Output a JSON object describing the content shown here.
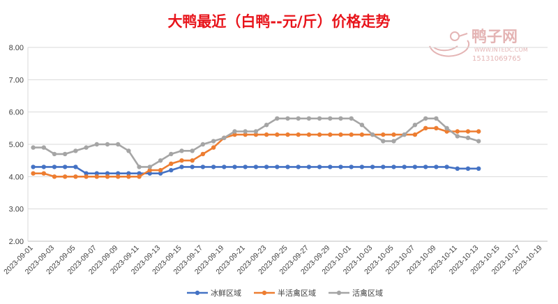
{
  "chart_data": {
    "type": "line",
    "title": "大鸭最近（白鸭--元/斤）价格走势",
    "xlabel": "",
    "ylabel": "",
    "ylim": [
      2.0,
      8.0
    ],
    "yticks": [
      "2.00",
      "3.00",
      "4.00",
      "5.00",
      "6.00",
      "7.00",
      "8.00"
    ],
    "x_start": "2023-09-01",
    "x_end": "2023-10-20",
    "x_tick_labels": [
      "2023-09-01",
      "2023-09-03",
      "2023-09-05",
      "2023-09-07",
      "2023-09-09",
      "2023-09-11",
      "2023-09-13",
      "2023-09-15",
      "2023-09-17",
      "2023-09-19",
      "2023-09-21",
      "2023-09-23",
      "2023-09-25",
      "2023-09-27",
      "2023-09-29",
      "2023-10-01",
      "2023-10-03",
      "2023-10-05",
      "2023-10-07",
      "2023-10-09",
      "2023-10-11",
      "2023-10-13",
      "2023-10-15",
      "2023-10-17",
      "2023-10-19"
    ],
    "grid": "horizontal",
    "legend": "bottom",
    "series": [
      {
        "name": "冰鲜区域",
        "color": "#4472c4",
        "points": [
          [
            "2023-09-01",
            4.3
          ],
          [
            "2023-09-02",
            4.3
          ],
          [
            "2023-09-03",
            4.3
          ],
          [
            "2023-09-04",
            4.3
          ],
          [
            "2023-09-05",
            4.3
          ],
          [
            "2023-09-06",
            4.1
          ],
          [
            "2023-09-07",
            4.1
          ],
          [
            "2023-09-08",
            4.1
          ],
          [
            "2023-09-09",
            4.1
          ],
          [
            "2023-09-10",
            4.1
          ],
          [
            "2023-09-11",
            4.1
          ],
          [
            "2023-09-12",
            4.1
          ],
          [
            "2023-09-13",
            4.1
          ],
          [
            "2023-09-14",
            4.2
          ],
          [
            "2023-09-15",
            4.3
          ],
          [
            "2023-09-16",
            4.3
          ],
          [
            "2023-09-17",
            4.3
          ],
          [
            "2023-09-18",
            4.3
          ],
          [
            "2023-09-19",
            4.3
          ],
          [
            "2023-09-20",
            4.3
          ],
          [
            "2023-09-21",
            4.3
          ],
          [
            "2023-09-22",
            4.3
          ],
          [
            "2023-09-23",
            4.3
          ],
          [
            "2023-09-24",
            4.3
          ],
          [
            "2023-09-25",
            4.3
          ],
          [
            "2023-09-26",
            4.3
          ],
          [
            "2023-09-27",
            4.3
          ],
          [
            "2023-09-28",
            4.3
          ],
          [
            "2023-09-29",
            4.3
          ],
          [
            "2023-09-30",
            4.3
          ],
          [
            "2023-10-01",
            4.3
          ],
          [
            "2023-10-02",
            4.3
          ],
          [
            "2023-10-03",
            4.3
          ],
          [
            "2023-10-04",
            4.3
          ],
          [
            "2023-10-05",
            4.3
          ],
          [
            "2023-10-06",
            4.3
          ],
          [
            "2023-10-07",
            4.3
          ],
          [
            "2023-10-08",
            4.3
          ],
          [
            "2023-10-09",
            4.3
          ],
          [
            "2023-10-10",
            4.3
          ],
          [
            "2023-10-11",
            4.25
          ],
          [
            "2023-10-12",
            4.25
          ],
          [
            "2023-10-13",
            4.25
          ]
        ]
      },
      {
        "name": "半活禽区域",
        "color": "#ed7d31",
        "points": [
          [
            "2023-09-01",
            4.1
          ],
          [
            "2023-09-02",
            4.1
          ],
          [
            "2023-09-03",
            4.0
          ],
          [
            "2023-09-04",
            4.0
          ],
          [
            "2023-09-05",
            4.0
          ],
          [
            "2023-09-06",
            4.0
          ],
          [
            "2023-09-07",
            4.0
          ],
          [
            "2023-09-08",
            4.0
          ],
          [
            "2023-09-09",
            4.0
          ],
          [
            "2023-09-10",
            4.0
          ],
          [
            "2023-09-11",
            4.0
          ],
          [
            "2023-09-12",
            4.2
          ],
          [
            "2023-09-13",
            4.2
          ],
          [
            "2023-09-14",
            4.4
          ],
          [
            "2023-09-15",
            4.5
          ],
          [
            "2023-09-16",
            4.5
          ],
          [
            "2023-09-17",
            4.7
          ],
          [
            "2023-09-18",
            4.9
          ],
          [
            "2023-09-19",
            5.2
          ],
          [
            "2023-09-20",
            5.3
          ],
          [
            "2023-09-21",
            5.3
          ],
          [
            "2023-09-22",
            5.3
          ],
          [
            "2023-09-23",
            5.3
          ],
          [
            "2023-09-24",
            5.3
          ],
          [
            "2023-09-25",
            5.3
          ],
          [
            "2023-09-26",
            5.3
          ],
          [
            "2023-09-27",
            5.3
          ],
          [
            "2023-09-28",
            5.3
          ],
          [
            "2023-09-29",
            5.3
          ],
          [
            "2023-09-30",
            5.3
          ],
          [
            "2023-10-01",
            5.3
          ],
          [
            "2023-10-02",
            5.3
          ],
          [
            "2023-10-03",
            5.3
          ],
          [
            "2023-10-04",
            5.3
          ],
          [
            "2023-10-05",
            5.3
          ],
          [
            "2023-10-06",
            5.3
          ],
          [
            "2023-10-07",
            5.3
          ],
          [
            "2023-10-08",
            5.5
          ],
          [
            "2023-10-09",
            5.5
          ],
          [
            "2023-10-10",
            5.4
          ],
          [
            "2023-10-11",
            5.4
          ],
          [
            "2023-10-12",
            5.4
          ],
          [
            "2023-10-13",
            5.4
          ]
        ]
      },
      {
        "name": "活禽区域",
        "color": "#a5a5a5",
        "points": [
          [
            "2023-09-01",
            4.9
          ],
          [
            "2023-09-02",
            4.9
          ],
          [
            "2023-09-03",
            4.7
          ],
          [
            "2023-09-04",
            4.7
          ],
          [
            "2023-09-05",
            4.8
          ],
          [
            "2023-09-06",
            4.9
          ],
          [
            "2023-09-07",
            5.0
          ],
          [
            "2023-09-08",
            5.0
          ],
          [
            "2023-09-09",
            5.0
          ],
          [
            "2023-09-10",
            4.8
          ],
          [
            "2023-09-11",
            4.3
          ],
          [
            "2023-09-12",
            4.3
          ],
          [
            "2023-09-13",
            4.5
          ],
          [
            "2023-09-14",
            4.7
          ],
          [
            "2023-09-15",
            4.8
          ],
          [
            "2023-09-16",
            4.8
          ],
          [
            "2023-09-17",
            5.0
          ],
          [
            "2023-09-18",
            5.1
          ],
          [
            "2023-09-19",
            5.2
          ],
          [
            "2023-09-20",
            5.4
          ],
          [
            "2023-09-21",
            5.4
          ],
          [
            "2023-09-22",
            5.4
          ],
          [
            "2023-09-23",
            5.6
          ],
          [
            "2023-09-24",
            5.8
          ],
          [
            "2023-09-25",
            5.8
          ],
          [
            "2023-09-26",
            5.8
          ],
          [
            "2023-09-27",
            5.8
          ],
          [
            "2023-09-28",
            5.8
          ],
          [
            "2023-09-29",
            5.8
          ],
          [
            "2023-09-30",
            5.8
          ],
          [
            "2023-10-01",
            5.8
          ],
          [
            "2023-10-02",
            5.6
          ],
          [
            "2023-10-03",
            5.3
          ],
          [
            "2023-10-04",
            5.1
          ],
          [
            "2023-10-05",
            5.1
          ],
          [
            "2023-10-06",
            5.3
          ],
          [
            "2023-10-07",
            5.6
          ],
          [
            "2023-10-08",
            5.8
          ],
          [
            "2023-10-09",
            5.8
          ],
          [
            "2023-10-10",
            5.5
          ],
          [
            "2023-10-11",
            5.25
          ],
          [
            "2023-10-12",
            5.2
          ],
          [
            "2023-10-13",
            5.1
          ]
        ]
      }
    ]
  },
  "watermark": {
    "brand": "鸭子网",
    "website": "WWW.INTEDC.COM",
    "phone": "15131069765"
  }
}
